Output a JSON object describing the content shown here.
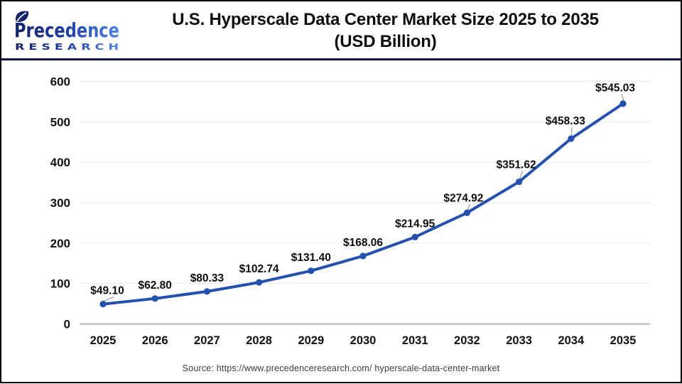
{
  "header": {
    "logo": {
      "brand": "Precedence",
      "sub": "R E S E A R C H"
    },
    "title_line1": "U.S. Hyperscale Data Center Market Size 2025 to 2035",
    "title_line2": "(USD Billion)"
  },
  "footer": {
    "source": "Source: https://www.precedenceresearch.com/ hyperscale-data-center-market"
  },
  "colors": {
    "line": "#2450ae",
    "point": "#2450ae",
    "grid": "#ececec",
    "axis_zero": "#b3b3b3",
    "tick_text": "#111111",
    "label_text": "#0d0d0d",
    "leader": "#9aa0a6",
    "divider_navy": "#11123f",
    "logo_dark": "#14236a",
    "logo_light": "#4f84e8"
  },
  "chart_data": {
    "type": "line",
    "title": "U.S. Hyperscale Data Center Market Size 2025 to 2035 (USD Billion)",
    "categories": [
      "2025",
      "2026",
      "2027",
      "2028",
      "2029",
      "2030",
      "2031",
      "2032",
      "2033",
      "2034",
      "2035"
    ],
    "values": [
      49.1,
      62.8,
      80.33,
      102.74,
      131.4,
      168.06,
      214.95,
      274.92,
      351.62,
      458.33,
      545.03
    ],
    "point_labels": [
      "$49.10",
      "$62.80",
      "$80.33",
      "$102.74",
      "$131.40",
      "$168.06",
      "$214.95",
      "$274.92",
      "$351.62",
      "$458.33",
      "$545.03"
    ],
    "yticks": [
      0,
      100,
      200,
      300,
      400,
      500,
      600
    ],
    "ylim": [
      0,
      600
    ],
    "xlabel": "",
    "ylabel": "",
    "grid": true,
    "legend": "none",
    "series_name": "U.S. Hyperscale Data Center Market Size (USD Billion)"
  }
}
